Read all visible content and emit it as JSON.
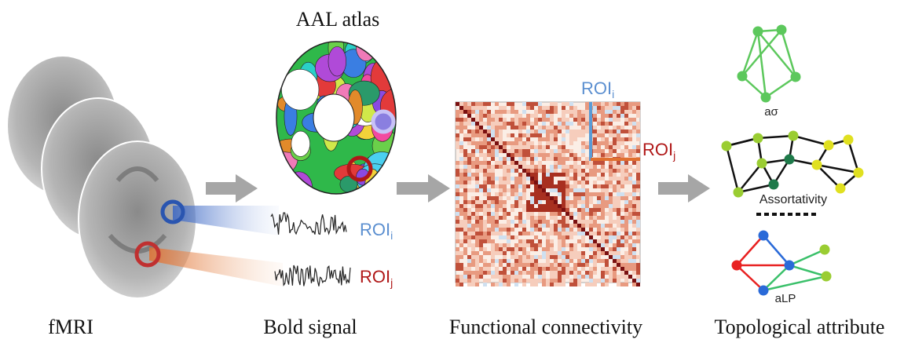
{
  "atlas_title": "AAL atlas",
  "roi_i": {
    "name": "ROI",
    "sub": "i"
  },
  "roi_j": {
    "name": "ROI",
    "sub": "j"
  },
  "stages": [
    "fMRI",
    "Bold signal",
    "Functional connectivity",
    "Topological attribute"
  ],
  "graph_labels": [
    "aσ",
    "Assortativity",
    "aLP"
  ]
}
